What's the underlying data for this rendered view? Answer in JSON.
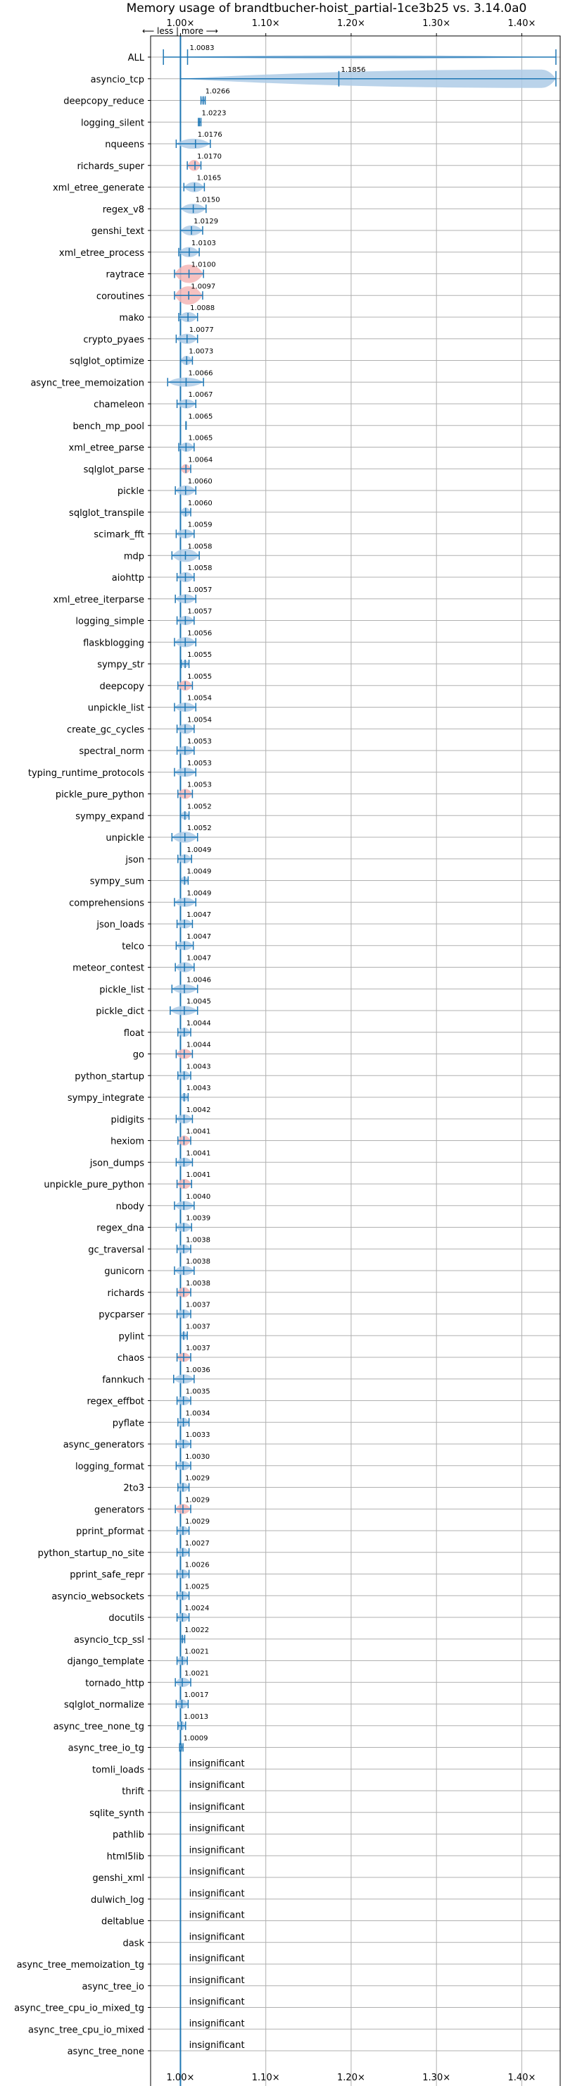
{
  "chart_data": {
    "type": "violin",
    "title": "Memory usage of brandtbucher-hoist_partial-1ce3b25 vs. 3.14.0a0",
    "direction_hint": "⟵ less | more ⟶",
    "xlim": [
      0.965,
      1.445
    ],
    "reference": 1.0,
    "x_ticks": [
      {
        "value": 1.0,
        "label": "1.00×"
      },
      {
        "value": 1.1,
        "label": "1.10×"
      },
      {
        "value": 1.2,
        "label": "1.20×"
      },
      {
        "value": 1.3,
        "label": "1.30×"
      },
      {
        "value": 1.4,
        "label": "1.40×"
      }
    ],
    "colors": {
      "faster": "#1f77b4",
      "slower": "#e377c2",
      "violin_blue": "#aecbe6",
      "violin_red": "#f4b6b6",
      "grid": "#b0b0b0"
    },
    "insignificant_label": "insignificant",
    "benchmarks": [
      {
        "name": "ALL",
        "mean": 1.0083,
        "label": "1.0083",
        "min": 0.98,
        "max": 1.44,
        "width": 0.2,
        "color": "blue"
      },
      {
        "name": "asyncio_tcp",
        "mean": 1.1856,
        "label": "1.1856",
        "min": 1.0,
        "max": 1.44,
        "width": 1.0,
        "color": "blue"
      },
      {
        "name": "deepcopy_reduce",
        "mean": 1.0266,
        "label": "1.0266",
        "min": 1.024,
        "max": 1.029,
        "width": 0.45,
        "color": "blue"
      },
      {
        "name": "logging_silent",
        "mean": 1.0223,
        "label": "1.0223",
        "min": 1.021,
        "max": 1.024,
        "width": 0.1,
        "color": "blue"
      },
      {
        "name": "nqueens",
        "mean": 1.0176,
        "label": "1.0176",
        "min": 0.995,
        "max": 1.035,
        "width": 0.55,
        "color": "blue"
      },
      {
        "name": "richards_super",
        "mean": 1.017,
        "label": "1.0170",
        "min": 1.008,
        "max": 1.024,
        "width": 0.6,
        "color": "red"
      },
      {
        "name": "xml_etree_generate",
        "mean": 1.0165,
        "label": "1.0165",
        "min": 1.004,
        "max": 1.028,
        "width": 0.55,
        "color": "blue"
      },
      {
        "name": "regex_v8",
        "mean": 1.015,
        "label": "1.0150",
        "min": 1.0,
        "max": 1.03,
        "width": 0.55,
        "color": "blue"
      },
      {
        "name": "genshi_text",
        "mean": 1.0129,
        "label": "1.0129",
        "min": 1.0,
        "max": 1.026,
        "width": 0.55,
        "color": "blue"
      },
      {
        "name": "xml_etree_process",
        "mean": 1.0103,
        "label": "1.0103",
        "min": 0.998,
        "max": 1.022,
        "width": 0.55,
        "color": "blue"
      },
      {
        "name": "raytrace",
        "mean": 1.01,
        "label": "1.0100",
        "min": 0.993,
        "max": 1.027,
        "width": 1.0,
        "color": "red"
      },
      {
        "name": "coroutines",
        "mean": 1.0097,
        "label": "1.0097",
        "min": 0.993,
        "max": 1.026,
        "width": 1.0,
        "color": "red"
      },
      {
        "name": "mako",
        "mean": 1.0088,
        "label": "1.0088",
        "min": 0.998,
        "max": 1.02,
        "width": 0.55,
        "color": "blue"
      },
      {
        "name": "crypto_pyaes",
        "mean": 1.0077,
        "label": "1.0077",
        "min": 0.995,
        "max": 1.02,
        "width": 0.55,
        "color": "blue"
      },
      {
        "name": "sqlglot_optimize",
        "mean": 1.0073,
        "label": "1.0073",
        "min": 1.0,
        "max": 1.014,
        "width": 0.5,
        "color": "blue"
      },
      {
        "name": "async_tree_memoization",
        "mean": 1.0066,
        "label": "1.0066",
        "min": 0.985,
        "max": 1.027,
        "width": 0.5,
        "color": "blue"
      },
      {
        "name": "chameleon",
        "mean": 1.0067,
        "label": "1.0067",
        "min": 0.996,
        "max": 1.018,
        "width": 0.5,
        "color": "blue"
      },
      {
        "name": "bench_mp_pool",
        "mean": 1.0065,
        "label": "1.0065",
        "min": 1.0063,
        "max": 1.0067,
        "width": 0.05,
        "color": "blue"
      },
      {
        "name": "xml_etree_parse",
        "mean": 1.0065,
        "label": "1.0065",
        "min": 0.998,
        "max": 1.016,
        "width": 0.5,
        "color": "blue"
      },
      {
        "name": "sqlglot_parse",
        "mean": 1.0064,
        "label": "1.0064",
        "min": 1.0,
        "max": 1.012,
        "width": 0.5,
        "color": "red"
      },
      {
        "name": "pickle",
        "mean": 1.006,
        "label": "1.0060",
        "min": 0.994,
        "max": 1.018,
        "width": 0.55,
        "color": "blue"
      },
      {
        "name": "sqlglot_transpile",
        "mean": 1.006,
        "label": "1.0060",
        "min": 1.0,
        "max": 1.012,
        "width": 0.5,
        "color": "blue"
      },
      {
        "name": "scimark_fft",
        "mean": 1.0059,
        "label": "1.0059",
        "min": 0.995,
        "max": 1.016,
        "width": 0.5,
        "color": "blue"
      },
      {
        "name": "mdp",
        "mean": 1.0058,
        "label": "1.0058",
        "min": 0.99,
        "max": 1.022,
        "width": 0.7,
        "color": "blue"
      },
      {
        "name": "aiohttp",
        "mean": 1.0058,
        "label": "1.0058",
        "min": 0.996,
        "max": 1.016,
        "width": 0.55,
        "color": "blue"
      },
      {
        "name": "xml_etree_iterparse",
        "mean": 1.0057,
        "label": "1.0057",
        "min": 0.994,
        "max": 1.018,
        "width": 0.5,
        "color": "blue"
      },
      {
        "name": "logging_simple",
        "mean": 1.0057,
        "label": "1.0057",
        "min": 0.996,
        "max": 1.016,
        "width": 0.5,
        "color": "blue"
      },
      {
        "name": "flaskblogging",
        "mean": 1.0056,
        "label": "1.0056",
        "min": 0.993,
        "max": 1.018,
        "width": 0.55,
        "color": "blue"
      },
      {
        "name": "sympy_str",
        "mean": 1.0055,
        "label": "1.0055",
        "min": 1.001,
        "max": 1.01,
        "width": 0.4,
        "color": "blue"
      },
      {
        "name": "deepcopy",
        "mean": 1.0055,
        "label": "1.0055",
        "min": 0.997,
        "max": 1.014,
        "width": 0.55,
        "color": "red"
      },
      {
        "name": "unpickle_list",
        "mean": 1.0054,
        "label": "1.0054",
        "min": 0.993,
        "max": 1.018,
        "width": 0.5,
        "color": "blue"
      },
      {
        "name": "create_gc_cycles",
        "mean": 1.0054,
        "label": "1.0054",
        "min": 0.996,
        "max": 1.016,
        "width": 0.55,
        "color": "blue"
      },
      {
        "name": "spectral_norm",
        "mean": 1.0053,
        "label": "1.0053",
        "min": 0.996,
        "max": 1.016,
        "width": 0.5,
        "color": "blue"
      },
      {
        "name": "typing_runtime_protocols",
        "mean": 1.0053,
        "label": "1.0053",
        "min": 0.993,
        "max": 1.018,
        "width": 0.5,
        "color": "blue"
      },
      {
        "name": "pickle_pure_python",
        "mean": 1.0053,
        "label": "1.0053",
        "min": 0.997,
        "max": 1.014,
        "width": 0.55,
        "color": "red"
      },
      {
        "name": "sympy_expand",
        "mean": 1.0052,
        "label": "1.0052",
        "min": 1.0,
        "max": 1.01,
        "width": 0.45,
        "color": "blue"
      },
      {
        "name": "unpickle",
        "mean": 1.0052,
        "label": "1.0052",
        "min": 0.99,
        "max": 1.02,
        "width": 0.6,
        "color": "blue"
      },
      {
        "name": "json",
        "mean": 1.0049,
        "label": "1.0049",
        "min": 0.997,
        "max": 1.013,
        "width": 0.5,
        "color": "blue"
      },
      {
        "name": "sympy_sum",
        "mean": 1.0049,
        "label": "1.0049",
        "min": 1.0,
        "max": 1.009,
        "width": 0.45,
        "color": "blue"
      },
      {
        "name": "comprehensions",
        "mean": 1.0049,
        "label": "1.0049",
        "min": 0.993,
        "max": 1.018,
        "width": 0.5,
        "color": "blue"
      },
      {
        "name": "json_loads",
        "mean": 1.0047,
        "label": "1.0047",
        "min": 0.996,
        "max": 1.014,
        "width": 0.5,
        "color": "blue"
      },
      {
        "name": "telco",
        "mean": 1.0047,
        "label": "1.0047",
        "min": 0.995,
        "max": 1.015,
        "width": 0.5,
        "color": "blue"
      },
      {
        "name": "meteor_contest",
        "mean": 1.0047,
        "label": "1.0047",
        "min": 0.994,
        "max": 1.016,
        "width": 0.55,
        "color": "blue"
      },
      {
        "name": "pickle_list",
        "mean": 1.0046,
        "label": "1.0046",
        "min": 0.99,
        "max": 1.02,
        "width": 0.5,
        "color": "blue"
      },
      {
        "name": "pickle_dict",
        "mean": 1.0045,
        "label": "1.0045",
        "min": 0.988,
        "max": 1.02,
        "width": 0.5,
        "color": "blue"
      },
      {
        "name": "float",
        "mean": 1.0044,
        "label": "1.0044",
        "min": 0.997,
        "max": 1.012,
        "width": 0.5,
        "color": "blue"
      },
      {
        "name": "go",
        "mean": 1.0044,
        "label": "1.0044",
        "min": 0.995,
        "max": 1.014,
        "width": 0.55,
        "color": "red"
      },
      {
        "name": "python_startup",
        "mean": 1.0043,
        "label": "1.0043",
        "min": 0.997,
        "max": 1.012,
        "width": 0.5,
        "color": "blue"
      },
      {
        "name": "sympy_integrate",
        "mean": 1.0043,
        "label": "1.0043",
        "min": 1.0,
        "max": 1.009,
        "width": 0.45,
        "color": "blue"
      },
      {
        "name": "pidigits",
        "mean": 1.0042,
        "label": "1.0042",
        "min": 0.995,
        "max": 1.014,
        "width": 0.5,
        "color": "blue"
      },
      {
        "name": "hexiom",
        "mean": 1.0041,
        "label": "1.0041",
        "min": 0.997,
        "max": 1.012,
        "width": 0.55,
        "color": "red"
      },
      {
        "name": "json_dumps",
        "mean": 1.0041,
        "label": "1.0041",
        "min": 0.995,
        "max": 1.014,
        "width": 0.5,
        "color": "blue"
      },
      {
        "name": "unpickle_pure_python",
        "mean": 1.0041,
        "label": "1.0041",
        "min": 0.996,
        "max": 1.013,
        "width": 0.55,
        "color": "red"
      },
      {
        "name": "nbody",
        "mean": 1.004,
        "label": "1.0040",
        "min": 0.993,
        "max": 1.016,
        "width": 0.5,
        "color": "blue"
      },
      {
        "name": "regex_dna",
        "mean": 1.0039,
        "label": "1.0039",
        "min": 0.995,
        "max": 1.013,
        "width": 0.5,
        "color": "blue"
      },
      {
        "name": "gc_traversal",
        "mean": 1.0038,
        "label": "1.0038",
        "min": 0.996,
        "max": 1.012,
        "width": 0.5,
        "color": "blue"
      },
      {
        "name": "gunicorn",
        "mean": 1.0038,
        "label": "1.0038",
        "min": 0.993,
        "max": 1.016,
        "width": 0.5,
        "color": "blue"
      },
      {
        "name": "richards",
        "mean": 1.0038,
        "label": "1.0038",
        "min": 0.996,
        "max": 1.012,
        "width": 0.55,
        "color": "red"
      },
      {
        "name": "pycparser",
        "mean": 1.0037,
        "label": "1.0037",
        "min": 0.996,
        "max": 1.012,
        "width": 0.5,
        "color": "blue"
      },
      {
        "name": "pylint",
        "mean": 1.0037,
        "label": "1.0037",
        "min": 1.0,
        "max": 1.008,
        "width": 0.45,
        "color": "blue"
      },
      {
        "name": "chaos",
        "mean": 1.0037,
        "label": "1.0037",
        "min": 0.996,
        "max": 1.012,
        "width": 0.5,
        "color": "red"
      },
      {
        "name": "fannkuch",
        "mean": 1.0036,
        "label": "1.0036",
        "min": 0.992,
        "max": 1.016,
        "width": 0.5,
        "color": "blue"
      },
      {
        "name": "regex_effbot",
        "mean": 1.0035,
        "label": "1.0035",
        "min": 0.996,
        "max": 1.012,
        "width": 0.5,
        "color": "blue"
      },
      {
        "name": "pyflate",
        "mean": 1.0034,
        "label": "1.0034",
        "min": 0.997,
        "max": 1.01,
        "width": 0.5,
        "color": "blue"
      },
      {
        "name": "async_generators",
        "mean": 1.0033,
        "label": "1.0033",
        "min": 0.995,
        "max": 1.012,
        "width": 0.5,
        "color": "blue"
      },
      {
        "name": "logging_format",
        "mean": 1.003,
        "label": "1.0030",
        "min": 0.995,
        "max": 1.012,
        "width": 0.5,
        "color": "blue"
      },
      {
        "name": "2to3",
        "mean": 1.0029,
        "label": "1.0029",
        "min": 0.997,
        "max": 1.01,
        "width": 0.5,
        "color": "blue"
      },
      {
        "name": "generators",
        "mean": 1.0029,
        "label": "1.0029",
        "min": 0.994,
        "max": 1.012,
        "width": 0.55,
        "color": "red"
      },
      {
        "name": "pprint_pformat",
        "mean": 1.0029,
        "label": "1.0029",
        "min": 0.996,
        "max": 1.01,
        "width": 0.5,
        "color": "blue"
      },
      {
        "name": "python_startup_no_site",
        "mean": 1.0027,
        "label": "1.0027",
        "min": 0.996,
        "max": 1.01,
        "width": 0.5,
        "color": "blue"
      },
      {
        "name": "pprint_safe_repr",
        "mean": 1.0026,
        "label": "1.0026",
        "min": 0.996,
        "max": 1.01,
        "width": 0.5,
        "color": "blue"
      },
      {
        "name": "asyncio_websockets",
        "mean": 1.0025,
        "label": "1.0025",
        "min": 0.996,
        "max": 1.01,
        "width": 0.5,
        "color": "blue"
      },
      {
        "name": "docutils",
        "mean": 1.0024,
        "label": "1.0024",
        "min": 0.996,
        "max": 1.01,
        "width": 0.5,
        "color": "blue"
      },
      {
        "name": "asyncio_tcp_ssl",
        "mean": 1.0022,
        "label": "1.0022",
        "min": 1.0,
        "max": 1.005,
        "width": 0.4,
        "color": "blue"
      },
      {
        "name": "django_template",
        "mean": 1.0021,
        "label": "1.0021",
        "min": 0.996,
        "max": 1.008,
        "width": 0.5,
        "color": "blue"
      },
      {
        "name": "tornado_http",
        "mean": 1.0021,
        "label": "1.0021",
        "min": 0.994,
        "max": 1.012,
        "width": 0.5,
        "color": "blue"
      },
      {
        "name": "sqlglot_normalize",
        "mean": 1.0017,
        "label": "1.0017",
        "min": 0.995,
        "max": 1.009,
        "width": 0.5,
        "color": "blue"
      },
      {
        "name": "async_tree_none_tg",
        "mean": 1.0013,
        "label": "1.0013",
        "min": 0.997,
        "max": 1.006,
        "width": 0.5,
        "color": "blue"
      },
      {
        "name": "async_tree_io_tg",
        "mean": 1.0009,
        "label": "1.0009",
        "min": 0.999,
        "max": 1.003,
        "width": 0.35,
        "color": "blue"
      },
      {
        "name": "tomli_loads",
        "insignificant": true
      },
      {
        "name": "thrift",
        "insignificant": true
      },
      {
        "name": "sqlite_synth",
        "insignificant": true
      },
      {
        "name": "pathlib",
        "insignificant": true
      },
      {
        "name": "html5lib",
        "insignificant": true
      },
      {
        "name": "genshi_xml",
        "insignificant": true
      },
      {
        "name": "dulwich_log",
        "insignificant": true
      },
      {
        "name": "deltablue",
        "insignificant": true
      },
      {
        "name": "dask",
        "insignificant": true
      },
      {
        "name": "async_tree_memoization_tg",
        "insignificant": true
      },
      {
        "name": "async_tree_io",
        "insignificant": true
      },
      {
        "name": "async_tree_cpu_io_mixed_tg",
        "insignificant": true
      },
      {
        "name": "async_tree_cpu_io_mixed",
        "insignificant": true
      },
      {
        "name": "async_tree_none",
        "insignificant": true
      }
    ]
  }
}
